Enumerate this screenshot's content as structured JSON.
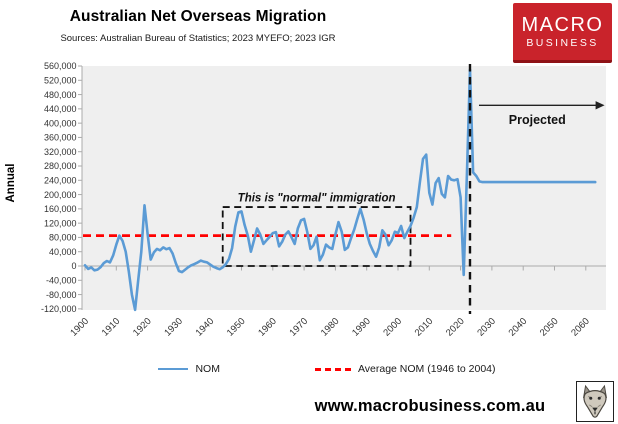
{
  "header": {
    "title": "Australian Net Overseas Migration",
    "subtitle": "Sources: Australian Bureau of Statistics; 2023 MYEFO; 2023 IGR"
  },
  "logo": {
    "line1": "MACRO",
    "line2": "BUSINESS",
    "bg_color": "#C9232B",
    "text_color": "#FFFFFF"
  },
  "chart_data": {
    "type": "line",
    "title": "Australian Net Overseas Migration",
    "xlabel": "",
    "ylabel": "Annual",
    "ylim": [
      -120000,
      560000
    ],
    "y_ticks": [
      560000,
      520000,
      480000,
      440000,
      400000,
      360000,
      320000,
      280000,
      240000,
      200000,
      160000,
      120000,
      80000,
      40000,
      0,
      -40000,
      -80000,
      -120000
    ],
    "x_ticks": [
      1900,
      1910,
      1920,
      1930,
      1940,
      1950,
      1960,
      1970,
      1980,
      1990,
      2000,
      2010,
      2020,
      2030,
      2040,
      2050,
      2060
    ],
    "grid": false,
    "plot_bg": "#EFEFEF",
    "axis_color": "#ABABAB",
    "legend": [
      "NOM",
      "Average NOM (1946 to 2004)"
    ],
    "legend_position": "bottom",
    "series": [
      {
        "name": "NOM",
        "color": "#5B9BD5",
        "style": "solid",
        "points": [
          [
            1900,
            2000
          ],
          [
            1901,
            -8000
          ],
          [
            1902,
            -4000
          ],
          [
            1903,
            -12000
          ],
          [
            1904,
            -10000
          ],
          [
            1905,
            -3000
          ],
          [
            1906,
            8000
          ],
          [
            1907,
            14000
          ],
          [
            1908,
            10000
          ],
          [
            1909,
            30000
          ],
          [
            1910,
            60000
          ],
          [
            1911,
            85000
          ],
          [
            1912,
            70000
          ],
          [
            1913,
            40000
          ],
          [
            1914,
            -15000
          ],
          [
            1915,
            -80000
          ],
          [
            1916,
            -123000
          ],
          [
            1917,
            -40000
          ],
          [
            1918,
            40000
          ],
          [
            1919,
            170000
          ],
          [
            1920,
            90000
          ],
          [
            1921,
            18000
          ],
          [
            1922,
            38000
          ],
          [
            1923,
            48000
          ],
          [
            1924,
            44000
          ],
          [
            1925,
            52000
          ],
          [
            1926,
            47000
          ],
          [
            1927,
            50000
          ],
          [
            1928,
            35000
          ],
          [
            1929,
            8000
          ],
          [
            1930,
            -14000
          ],
          [
            1931,
            -17000
          ],
          [
            1932,
            -10000
          ],
          [
            1933,
            -3000
          ],
          [
            1934,
            2000
          ],
          [
            1935,
            6000
          ],
          [
            1936,
            10000
          ],
          [
            1937,
            15000
          ],
          [
            1938,
            12000
          ],
          [
            1939,
            10000
          ],
          [
            1940,
            4000
          ],
          [
            1941,
            -2000
          ],
          [
            1942,
            -6000
          ],
          [
            1943,
            -9000
          ],
          [
            1944,
            -4000
          ],
          [
            1945,
            5000
          ],
          [
            1946,
            20000
          ],
          [
            1947,
            50000
          ],
          [
            1948,
            110000
          ],
          [
            1949,
            150000
          ],
          [
            1950,
            153000
          ],
          [
            1951,
            115000
          ],
          [
            1952,
            85000
          ],
          [
            1953,
            40000
          ],
          [
            1954,
            72000
          ],
          [
            1955,
            105000
          ],
          [
            1956,
            88000
          ],
          [
            1957,
            62000
          ],
          [
            1958,
            72000
          ],
          [
            1959,
            82000
          ],
          [
            1960,
            92000
          ],
          [
            1961,
            95000
          ],
          [
            1962,
            55000
          ],
          [
            1963,
            68000
          ],
          [
            1964,
            88000
          ],
          [
            1965,
            97000
          ],
          [
            1966,
            80000
          ],
          [
            1967,
            62000
          ],
          [
            1968,
            105000
          ],
          [
            1969,
            128000
          ],
          [
            1970,
            132000
          ],
          [
            1971,
            96000
          ],
          [
            1972,
            48000
          ],
          [
            1973,
            58000
          ],
          [
            1974,
            82000
          ],
          [
            1975,
            16000
          ],
          [
            1976,
            32000
          ],
          [
            1977,
            60000
          ],
          [
            1978,
            52000
          ],
          [
            1979,
            48000
          ],
          [
            1980,
            88000
          ],
          [
            1981,
            123000
          ],
          [
            1982,
            96000
          ],
          [
            1983,
            45000
          ],
          [
            1984,
            52000
          ],
          [
            1985,
            78000
          ],
          [
            1986,
            102000
          ],
          [
            1987,
            132000
          ],
          [
            1988,
            160000
          ],
          [
            1989,
            130000
          ],
          [
            1990,
            92000
          ],
          [
            1991,
            62000
          ],
          [
            1992,
            42000
          ],
          [
            1993,
            26000
          ],
          [
            1994,
            52000
          ],
          [
            1995,
            100000
          ],
          [
            1996,
            88000
          ],
          [
            1997,
            58000
          ],
          [
            1998,
            72000
          ],
          [
            1999,
            96000
          ],
          [
            2000,
            92000
          ],
          [
            2001,
            112000
          ],
          [
            2002,
            78000
          ],
          [
            2003,
            96000
          ],
          [
            2004,
            112000
          ],
          [
            2005,
            135000
          ],
          [
            2006,
            165000
          ],
          [
            2007,
            235000
          ],
          [
            2008,
            300000
          ],
          [
            2009,
            312000
          ],
          [
            2010,
            205000
          ],
          [
            2011,
            172000
          ],
          [
            2012,
            232000
          ],
          [
            2013,
            246000
          ],
          [
            2014,
            202000
          ],
          [
            2015,
            192000
          ],
          [
            2016,
            252000
          ],
          [
            2017,
            242000
          ],
          [
            2018,
            240000
          ],
          [
            2019,
            243000
          ],
          [
            2020,
            192000
          ],
          [
            2021,
            -25000
          ],
          [
            2022,
            255000
          ],
          [
            2023,
            550000
          ],
          [
            2024,
            262000
          ],
          [
            2025,
            252000
          ],
          [
            2026,
            237000
          ],
          [
            2027,
            235000
          ],
          [
            2035,
            235000
          ],
          [
            2045,
            235000
          ],
          [
            2055,
            235000
          ],
          [
            2063,
            235000
          ]
        ]
      },
      {
        "name": "Average NOM (1946 to 2004)",
        "color": "#FF0000",
        "style": "dashed",
        "value": 85000,
        "x_start": 1900,
        "x_end": 2017
      }
    ],
    "annotations": {
      "normal_box": {
        "label": "This is \"normal\" immigration",
        "x1": 1944,
        "x2": 2004,
        "y1": 0,
        "y2": 165000
      },
      "projected": {
        "label": "Projected",
        "divider_year": 2023,
        "arrow_y": 450000,
        "arrow_end_year": 2066
      }
    }
  },
  "footer": {
    "url": "www.macrobusiness.com.au",
    "logo_name": "wolf-logo"
  }
}
